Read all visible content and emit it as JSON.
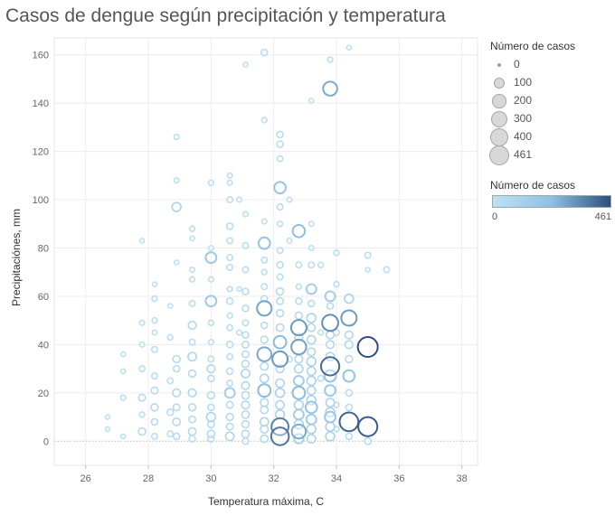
{
  "title": "Casos de dengue según precipitación y temperatura",
  "legend_size": {
    "title": "Número de casos",
    "entries": [
      "0",
      "100",
      "200",
      "300",
      "400",
      "461"
    ]
  },
  "legend_color": {
    "title": "Número de casos",
    "min_label": "0",
    "max_label": "461",
    "color_low": "#bfe0f4",
    "color_mid": "#8fc0e2",
    "color_high": "#2c4f7d"
  },
  "chart_data": {
    "type": "scatter",
    "title": "Casos de dengue según precipitación y temperatura",
    "xlabel": "Temperatura máxima, C",
    "ylabel": "Precipitaciónes, mm",
    "xlim": [
      25,
      38.5
    ],
    "ylim": [
      -10,
      167
    ],
    "xticks": [
      "26",
      "28",
      "30",
      "32",
      "34",
      "36",
      "38"
    ],
    "yticks": [
      "0",
      "20",
      "40",
      "60",
      "80",
      "100",
      "120",
      "140",
      "160"
    ],
    "grid": true,
    "size_legend_placement": "top-right",
    "color_legend_placement": "right",
    "points": [
      {
        "x": 26.7,
        "y": 10,
        "c": 5
      },
      {
        "x": 26.7,
        "y": 5,
        "c": 5
      },
      {
        "x": 27.2,
        "y": 36,
        "c": 5
      },
      {
        "x": 27.2,
        "y": 29,
        "c": 5
      },
      {
        "x": 27.2,
        "y": 18,
        "c": 10
      },
      {
        "x": 27.2,
        "y": 2,
        "c": 5
      },
      {
        "x": 27.8,
        "y": 83,
        "c": 5
      },
      {
        "x": 27.8,
        "y": 49,
        "c": 8
      },
      {
        "x": 27.8,
        "y": 40,
        "c": 8
      },
      {
        "x": 27.8,
        "y": 30,
        "c": 15
      },
      {
        "x": 27.8,
        "y": 18,
        "c": 25
      },
      {
        "x": 27.8,
        "y": 11,
        "c": 10
      },
      {
        "x": 27.8,
        "y": 4,
        "c": 30
      },
      {
        "x": 28.2,
        "y": 65,
        "c": 5
      },
      {
        "x": 28.2,
        "y": 59,
        "c": 10
      },
      {
        "x": 28.2,
        "y": 50,
        "c": 10
      },
      {
        "x": 28.2,
        "y": 45,
        "c": 8
      },
      {
        "x": 28.2,
        "y": 38,
        "c": 15
      },
      {
        "x": 28.2,
        "y": 27,
        "c": 15
      },
      {
        "x": 28.2,
        "y": 21,
        "c": 25
      },
      {
        "x": 28.2,
        "y": 14,
        "c": 30
      },
      {
        "x": 28.2,
        "y": 8,
        "c": 20
      },
      {
        "x": 28.2,
        "y": 2,
        "c": 15
      },
      {
        "x": 28.7,
        "y": 56,
        "c": 5
      },
      {
        "x": 28.7,
        "y": 43,
        "c": 10
      },
      {
        "x": 28.7,
        "y": 25,
        "c": 15
      },
      {
        "x": 28.7,
        "y": 12,
        "c": 20
      },
      {
        "x": 28.7,
        "y": 3,
        "c": 15
      },
      {
        "x": 28.9,
        "y": 126,
        "c": 10
      },
      {
        "x": 28.9,
        "y": 108,
        "c": 8
      },
      {
        "x": 28.9,
        "y": 97,
        "c": 60
      },
      {
        "x": 28.9,
        "y": 74,
        "c": 5
      },
      {
        "x": 28.9,
        "y": 34,
        "c": 30
      },
      {
        "x": 28.9,
        "y": 30,
        "c": 20
      },
      {
        "x": 28.9,
        "y": 20,
        "c": 40
      },
      {
        "x": 28.9,
        "y": 14,
        "c": 25
      },
      {
        "x": 28.9,
        "y": 8,
        "c": 35
      },
      {
        "x": 28.9,
        "y": 2,
        "c": 20
      },
      {
        "x": 29.4,
        "y": 88,
        "c": 10
      },
      {
        "x": 29.4,
        "y": 84,
        "c": 5
      },
      {
        "x": 29.4,
        "y": 71,
        "c": 8
      },
      {
        "x": 29.4,
        "y": 67,
        "c": 10
      },
      {
        "x": 29.4,
        "y": 57,
        "c": 15
      },
      {
        "x": 29.4,
        "y": 48,
        "c": 40
      },
      {
        "x": 29.4,
        "y": 41,
        "c": 15
      },
      {
        "x": 29.4,
        "y": 35,
        "c": 50
      },
      {
        "x": 29.4,
        "y": 28,
        "c": 30
      },
      {
        "x": 29.4,
        "y": 20,
        "c": 40
      },
      {
        "x": 29.4,
        "y": 14,
        "c": 30
      },
      {
        "x": 29.4,
        "y": 9,
        "c": 25
      },
      {
        "x": 29.4,
        "y": 4,
        "c": 35
      },
      {
        "x": 29.4,
        "y": 1,
        "c": 20
      },
      {
        "x": 30.0,
        "y": 107,
        "c": 10
      },
      {
        "x": 30.0,
        "y": 80,
        "c": 8
      },
      {
        "x": 30.0,
        "y": 76,
        "c": 100
      },
      {
        "x": 30.0,
        "y": 67,
        "c": 8
      },
      {
        "x": 30.0,
        "y": 58,
        "c": 100
      },
      {
        "x": 30.0,
        "y": 49,
        "c": 10
      },
      {
        "x": 30.0,
        "y": 41,
        "c": 10
      },
      {
        "x": 30.0,
        "y": 34,
        "c": 15
      },
      {
        "x": 30.0,
        "y": 30,
        "c": 40
      },
      {
        "x": 30.0,
        "y": 26,
        "c": 20
      },
      {
        "x": 30.0,
        "y": 19,
        "c": 30
      },
      {
        "x": 30.0,
        "y": 14,
        "c": 20
      },
      {
        "x": 30.0,
        "y": 10,
        "c": 60
      },
      {
        "x": 30.0,
        "y": 7,
        "c": 25
      },
      {
        "x": 30.0,
        "y": 3,
        "c": 35
      },
      {
        "x": 30.0,
        "y": 1,
        "c": 20
      },
      {
        "x": 30.6,
        "y": 110,
        "c": 8
      },
      {
        "x": 30.6,
        "y": 107,
        "c": 8
      },
      {
        "x": 30.6,
        "y": 100,
        "c": 15
      },
      {
        "x": 30.6,
        "y": 89,
        "c": 20
      },
      {
        "x": 30.6,
        "y": 83,
        "c": 15
      },
      {
        "x": 30.6,
        "y": 76,
        "c": 15
      },
      {
        "x": 30.6,
        "y": 72,
        "c": 15
      },
      {
        "x": 30.6,
        "y": 63,
        "c": 10
      },
      {
        "x": 30.6,
        "y": 58,
        "c": 20
      },
      {
        "x": 30.6,
        "y": 52,
        "c": 10
      },
      {
        "x": 30.6,
        "y": 47,
        "c": 15
      },
      {
        "x": 30.6,
        "y": 40,
        "c": 20
      },
      {
        "x": 30.6,
        "y": 35,
        "c": 15
      },
      {
        "x": 30.6,
        "y": 29,
        "c": 20
      },
      {
        "x": 30.6,
        "y": 24,
        "c": 15
      },
      {
        "x": 30.6,
        "y": 20,
        "c": 80
      },
      {
        "x": 30.6,
        "y": 15,
        "c": 25
      },
      {
        "x": 30.6,
        "y": 10,
        "c": 30
      },
      {
        "x": 30.6,
        "y": 6,
        "c": 25
      },
      {
        "x": 30.6,
        "y": 2,
        "c": 50
      },
      {
        "x": 30.9,
        "y": 100,
        "c": 8
      },
      {
        "x": 30.9,
        "y": 63,
        "c": 5
      },
      {
        "x": 30.9,
        "y": 45,
        "c": 8
      },
      {
        "x": 31.1,
        "y": 156,
        "c": 5
      },
      {
        "x": 31.1,
        "y": 94,
        "c": 8
      },
      {
        "x": 31.1,
        "y": 81,
        "c": 15
      },
      {
        "x": 31.1,
        "y": 71,
        "c": 15
      },
      {
        "x": 31.1,
        "y": 62,
        "c": 20
      },
      {
        "x": 31.1,
        "y": 55,
        "c": 20
      },
      {
        "x": 31.1,
        "y": 49,
        "c": 15
      },
      {
        "x": 31.1,
        "y": 44,
        "c": 20
      },
      {
        "x": 31.1,
        "y": 40,
        "c": 25
      },
      {
        "x": 31.1,
        "y": 36,
        "c": 25
      },
      {
        "x": 31.1,
        "y": 32,
        "c": 30
      },
      {
        "x": 31.1,
        "y": 28,
        "c": 50
      },
      {
        "x": 31.1,
        "y": 23,
        "c": 40
      },
      {
        "x": 31.1,
        "y": 19,
        "c": 35
      },
      {
        "x": 31.1,
        "y": 15,
        "c": 40
      },
      {
        "x": 31.1,
        "y": 11,
        "c": 35
      },
      {
        "x": 31.1,
        "y": 7,
        "c": 30
      },
      {
        "x": 31.1,
        "y": 3,
        "c": 35
      },
      {
        "x": 31.1,
        "y": 0,
        "c": 20
      },
      {
        "x": 31.7,
        "y": 161,
        "c": 20
      },
      {
        "x": 31.7,
        "y": 133,
        "c": 10
      },
      {
        "x": 31.7,
        "y": 91,
        "c": 8
      },
      {
        "x": 31.7,
        "y": 82,
        "c": 120
      },
      {
        "x": 31.7,
        "y": 75,
        "c": 15
      },
      {
        "x": 31.7,
        "y": 70,
        "c": 10
      },
      {
        "x": 31.7,
        "y": 64,
        "c": 15
      },
      {
        "x": 31.7,
        "y": 59,
        "c": 20
      },
      {
        "x": 31.7,
        "y": 55,
        "c": 220
      },
      {
        "x": 31.7,
        "y": 48,
        "c": 20
      },
      {
        "x": 31.7,
        "y": 42,
        "c": 30
      },
      {
        "x": 31.7,
        "y": 36,
        "c": 200
      },
      {
        "x": 31.7,
        "y": 31,
        "c": 40
      },
      {
        "x": 31.7,
        "y": 26,
        "c": 50
      },
      {
        "x": 31.7,
        "y": 21,
        "c": 150
      },
      {
        "x": 31.7,
        "y": 16,
        "c": 40
      },
      {
        "x": 31.7,
        "y": 13,
        "c": 35
      },
      {
        "x": 31.7,
        "y": 8,
        "c": 50
      },
      {
        "x": 31.7,
        "y": 5,
        "c": 40
      },
      {
        "x": 31.7,
        "y": 1,
        "c": 35
      },
      {
        "x": 32.2,
        "y": 127,
        "c": 20
      },
      {
        "x": 32.2,
        "y": 123,
        "c": 20
      },
      {
        "x": 32.2,
        "y": 117,
        "c": 15
      },
      {
        "x": 32.2,
        "y": 105,
        "c": 120
      },
      {
        "x": 32.2,
        "y": 97,
        "c": 15
      },
      {
        "x": 32.2,
        "y": 90,
        "c": 10
      },
      {
        "x": 32.2,
        "y": 79,
        "c": 15
      },
      {
        "x": 32.2,
        "y": 73,
        "c": 20
      },
      {
        "x": 32.2,
        "y": 68,
        "c": 15
      },
      {
        "x": 32.2,
        "y": 62,
        "c": 30
      },
      {
        "x": 32.2,
        "y": 58,
        "c": 25
      },
      {
        "x": 32.2,
        "y": 53,
        "c": 30
      },
      {
        "x": 32.2,
        "y": 47,
        "c": 35
      },
      {
        "x": 32.2,
        "y": 41,
        "c": 150
      },
      {
        "x": 32.2,
        "y": 34,
        "c": 250
      },
      {
        "x": 32.2,
        "y": 30,
        "c": 40
      },
      {
        "x": 32.2,
        "y": 24,
        "c": 50
      },
      {
        "x": 32.2,
        "y": 20,
        "c": 60
      },
      {
        "x": 32.2,
        "y": 15,
        "c": 50
      },
      {
        "x": 32.2,
        "y": 11,
        "c": 60
      },
      {
        "x": 32.2,
        "y": 6,
        "c": 320
      },
      {
        "x": 32.2,
        "y": 2,
        "c": 350
      },
      {
        "x": 32.5,
        "y": 100,
        "c": 8
      },
      {
        "x": 32.5,
        "y": 83,
        "c": 8
      },
      {
        "x": 32.5,
        "y": 34,
        "c": 15
      },
      {
        "x": 32.8,
        "y": 87,
        "c": 140
      },
      {
        "x": 32.8,
        "y": 73,
        "c": 15
      },
      {
        "x": 32.8,
        "y": 64,
        "c": 10
      },
      {
        "x": 32.8,
        "y": 58,
        "c": 20
      },
      {
        "x": 32.8,
        "y": 52,
        "c": 30
      },
      {
        "x": 32.8,
        "y": 47,
        "c": 250
      },
      {
        "x": 32.8,
        "y": 43,
        "c": 40
      },
      {
        "x": 32.8,
        "y": 39,
        "c": 230
      },
      {
        "x": 32.8,
        "y": 34,
        "c": 40
      },
      {
        "x": 32.8,
        "y": 30,
        "c": 50
      },
      {
        "x": 32.8,
        "y": 25,
        "c": 80
      },
      {
        "x": 32.8,
        "y": 20,
        "c": 150
      },
      {
        "x": 32.8,
        "y": 15,
        "c": 60
      },
      {
        "x": 32.8,
        "y": 11,
        "c": 80
      },
      {
        "x": 32.8,
        "y": 7,
        "c": 60
      },
      {
        "x": 32.8,
        "y": 4,
        "c": 200
      },
      {
        "x": 32.8,
        "y": 1,
        "c": 70
      },
      {
        "x": 33.2,
        "y": 141,
        "c": 5
      },
      {
        "x": 33.2,
        "y": 90,
        "c": 8
      },
      {
        "x": 33.2,
        "y": 80,
        "c": 8
      },
      {
        "x": 33.2,
        "y": 73,
        "c": 15
      },
      {
        "x": 33.2,
        "y": 63,
        "c": 80
      },
      {
        "x": 33.2,
        "y": 57,
        "c": 20
      },
      {
        "x": 33.2,
        "y": 51,
        "c": 60
      },
      {
        "x": 33.2,
        "y": 47,
        "c": 40
      },
      {
        "x": 33.2,
        "y": 42,
        "c": 50
      },
      {
        "x": 33.2,
        "y": 37,
        "c": 40
      },
      {
        "x": 33.2,
        "y": 33,
        "c": 60
      },
      {
        "x": 33.2,
        "y": 29,
        "c": 50
      },
      {
        "x": 33.2,
        "y": 25,
        "c": 60
      },
      {
        "x": 33.2,
        "y": 21,
        "c": 50
      },
      {
        "x": 33.2,
        "y": 17,
        "c": 60
      },
      {
        "x": 33.2,
        "y": 14,
        "c": 120
      },
      {
        "x": 33.2,
        "y": 9,
        "c": 80
      },
      {
        "x": 33.2,
        "y": 5,
        "c": 60
      },
      {
        "x": 33.2,
        "y": 1,
        "c": 50
      },
      {
        "x": 33.5,
        "y": 73,
        "c": 10
      },
      {
        "x": 33.5,
        "y": 45,
        "c": 10
      },
      {
        "x": 33.5,
        "y": 26,
        "c": 15
      },
      {
        "x": 33.8,
        "y": 158,
        "c": 10
      },
      {
        "x": 33.8,
        "y": 146,
        "c": 200
      },
      {
        "x": 33.8,
        "y": 60,
        "c": 80
      },
      {
        "x": 33.8,
        "y": 56,
        "c": 20
      },
      {
        "x": 33.8,
        "y": 49,
        "c": 280
      },
      {
        "x": 33.8,
        "y": 44,
        "c": 40
      },
      {
        "x": 33.8,
        "y": 40,
        "c": 40
      },
      {
        "x": 33.8,
        "y": 35,
        "c": 50
      },
      {
        "x": 33.8,
        "y": 31,
        "c": 380
      },
      {
        "x": 33.8,
        "y": 27,
        "c": 120
      },
      {
        "x": 33.8,
        "y": 21,
        "c": 100
      },
      {
        "x": 33.8,
        "y": 16,
        "c": 50
      },
      {
        "x": 33.8,
        "y": 12,
        "c": 60
      },
      {
        "x": 33.8,
        "y": 10,
        "c": 100
      },
      {
        "x": 33.8,
        "y": 6,
        "c": 60
      },
      {
        "x": 33.8,
        "y": 2,
        "c": 60
      },
      {
        "x": 34.0,
        "y": 78,
        "c": 10
      },
      {
        "x": 34.0,
        "y": 65,
        "c": 10
      },
      {
        "x": 34.0,
        "y": 45,
        "c": 15
      },
      {
        "x": 34.0,
        "y": 15,
        "c": 10
      },
      {
        "x": 34.0,
        "y": 5,
        "c": 10
      },
      {
        "x": 34.4,
        "y": 163,
        "c": 5
      },
      {
        "x": 34.4,
        "y": 59,
        "c": 60
      },
      {
        "x": 34.4,
        "y": 51,
        "c": 250
      },
      {
        "x": 34.4,
        "y": 44,
        "c": 40
      },
      {
        "x": 34.4,
        "y": 40,
        "c": 40
      },
      {
        "x": 34.4,
        "y": 34,
        "c": 30
      },
      {
        "x": 34.4,
        "y": 27,
        "c": 120
      },
      {
        "x": 34.4,
        "y": 20,
        "c": 20
      },
      {
        "x": 34.4,
        "y": 14,
        "c": 20
      },
      {
        "x": 34.4,
        "y": 8,
        "c": 400
      },
      {
        "x": 34.4,
        "y": 2,
        "c": 20
      },
      {
        "x": 35.0,
        "y": 77,
        "c": 15
      },
      {
        "x": 35.0,
        "y": 71,
        "c": 5
      },
      {
        "x": 35.0,
        "y": 39,
        "c": 461
      },
      {
        "x": 35.0,
        "y": 6,
        "c": 420
      },
      {
        "x": 35.0,
        "y": 0,
        "c": 25
      },
      {
        "x": 35.6,
        "y": 71,
        "c": 15
      }
    ]
  }
}
